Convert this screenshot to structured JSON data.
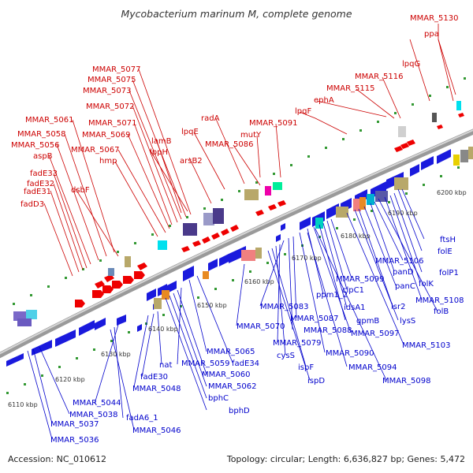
{
  "title": "Mycobacterium marinum M, complete genome",
  "footer": {
    "accession": "Accession: NC_010612",
    "summary": "Topology: circular; Length: 6,636,827 bp; Genes: 5,472"
  },
  "colors": {
    "forward_label": "#cc0000",
    "reverse_label": "#0000cc",
    "forward_gene": "#ee0000",
    "reverse_gene": "#1a1add",
    "backbone": "#888888",
    "tick_dot": "#339933"
  },
  "ticks": [
    "6110 kbp",
    "6120 kbp",
    "6130 kbp",
    "6140 kbp",
    "6150 kbp",
    "6160 kbp",
    "6170 kbp",
    "6180 kbp",
    "6190 kbp",
    "6200 kbp"
  ],
  "forward_labels": [
    "MMAR_5130",
    "ppa",
    "lpqG",
    "MMAR_5116",
    "MMAR_5115",
    "ephA",
    "lpqF",
    "MMAR_5091",
    "mutY",
    "radA",
    "MMAR_5086",
    "lpqE",
    "arsB2",
    "lppH",
    "lamB",
    "MMAR_5077",
    "MMAR_5075",
    "MMAR_5073",
    "MMAR_5072",
    "MMAR_5071",
    "MMAR_5069",
    "MMAR_5067",
    "hmp",
    "MMAR_5061",
    "MMAR_5058",
    "MMAR_5056",
    "aspB",
    "dsbF",
    "fadE33",
    "fadE32",
    "fadE31",
    "fadD3"
  ],
  "reverse_labels": [
    "ftsH",
    "folE",
    "folP1",
    "folK",
    "MMAR_5108",
    "folB",
    "MMAR_5106",
    "panD",
    "panC",
    "lsr2",
    "lysS",
    "MMAR_5103",
    "MMAR_5099",
    "clpC1",
    "idsA1",
    "gpmB",
    "MMAR_5097",
    "ppm1_2",
    "MMAR_5087",
    "MMAR_5088",
    "MMAR_5083",
    "MMAR_5070",
    "MMAR_5079",
    "cysS",
    "ispF",
    "ispD",
    "MMAR_5090",
    "MMAR_5094",
    "MMAR_5098",
    "MMAR_5065",
    "fadE34",
    "MMAR_5059",
    "MMAR_5060",
    "MMAR_5062",
    "bphC",
    "bphD",
    "nat",
    "fadE30",
    "MMAR_5048",
    "MMAR_5044",
    "fadA6_1",
    "MMAR_5046",
    "MMAR_5038",
    "MMAR_5037",
    "MMAR_5036"
  ]
}
